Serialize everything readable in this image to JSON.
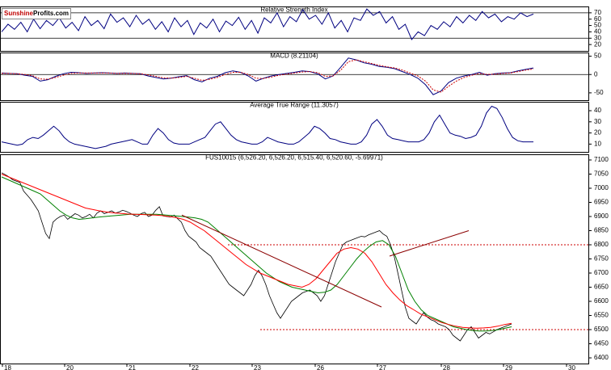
{
  "logo": {
    "part1": "Sunshine",
    "part2": "Profits.com"
  },
  "chart_data": [
    {
      "type": "line",
      "title": "Relative Strength Index",
      "ylim": [
        10,
        80
      ],
      "y_ticks": [
        70,
        60,
        50,
        40,
        30,
        20
      ],
      "reference_lines": [
        70,
        30
      ],
      "series": [
        {
          "color": "#000080",
          "values": [
            40,
            52,
            44,
            55,
            40,
            60,
            45,
            58,
            50,
            62,
            46,
            55,
            42,
            64,
            50,
            58,
            45,
            68,
            55,
            62,
            48,
            66,
            52,
            60,
            44,
            56,
            40,
            62,
            48,
            58,
            36,
            54,
            46,
            60,
            40,
            57,
            50,
            63,
            44,
            58,
            38,
            62,
            54,
            70,
            48,
            64,
            56,
            75,
            60,
            66,
            52,
            70,
            46,
            58,
            40,
            62,
            58,
            76,
            66,
            72,
            54,
            64,
            44,
            52,
            28,
            40,
            34,
            50,
            44,
            56,
            48,
            64,
            54,
            66,
            58,
            72,
            62,
            68,
            56,
            64,
            60,
            70,
            64,
            68
          ]
        }
      ]
    },
    {
      "type": "line",
      "title": "MACD (8.21104)",
      "ylim": [
        -70,
        60
      ],
      "y_ticks": [
        50,
        0,
        -50
      ],
      "series": [
        {
          "color": "#000080",
          "values": [
            4,
            3,
            2,
            -2,
            -5,
            -18,
            -14,
            -5,
            2,
            6,
            5,
            3,
            4,
            5,
            4,
            3,
            4,
            3,
            2,
            -4,
            -8,
            -12,
            -10,
            -6,
            -3,
            -14,
            -20,
            -10,
            -5,
            5,
            10,
            6,
            -4,
            -18,
            -10,
            -4,
            0,
            3,
            6,
            10,
            8,
            2,
            -12,
            -4,
            20,
            45,
            40,
            32,
            28,
            22,
            20,
            16,
            8,
            0,
            -10,
            -28,
            -55,
            -45,
            -22,
            -10,
            -4,
            0,
            6,
            -2,
            2,
            4,
            5,
            10,
            14,
            18
          ]
        },
        {
          "color": "#cc0000",
          "values": [
            3,
            3,
            2,
            0,
            -3,
            -12,
            -13,
            -8,
            -2,
            3,
            4,
            4,
            4,
            4,
            4,
            3,
            3,
            3,
            2,
            -1,
            -5,
            -9,
            -10,
            -8,
            -5,
            -10,
            -16,
            -13,
            -8,
            0,
            6,
            6,
            0,
            -10,
            -11,
            -7,
            -2,
            1,
            4,
            7,
            8,
            5,
            -5,
            -4,
            12,
            35,
            40,
            35,
            30,
            25,
            21,
            18,
            12,
            4,
            -4,
            -18,
            -42,
            -48,
            -32,
            -18,
            -8,
            -2,
            3,
            0,
            1,
            3,
            4,
            8,
            12,
            15
          ]
        }
      ]
    },
    {
      "type": "line",
      "title": "Average True Range (11.3057)",
      "ylim": [
        3,
        48
      ],
      "y_ticks": [
        40,
        30,
        20,
        10
      ],
      "series": [
        {
          "color": "#000080",
          "values": [
            12,
            11,
            10,
            9,
            10,
            14,
            16,
            15,
            18,
            22,
            26,
            22,
            16,
            12,
            10,
            9,
            8,
            7,
            6,
            7,
            8,
            10,
            11,
            12,
            13,
            14,
            12,
            10,
            10,
            18,
            24,
            20,
            14,
            11,
            10,
            10,
            10,
            12,
            14,
            16,
            22,
            28,
            30,
            24,
            18,
            14,
            12,
            11,
            10,
            10,
            12,
            16,
            14,
            12,
            11,
            10,
            10,
            12,
            16,
            20,
            26,
            24,
            20,
            15,
            14,
            12,
            11,
            10,
            10,
            12,
            18,
            28,
            32,
            26,
            18,
            15,
            14,
            13,
            12,
            12,
            12,
            14,
            20,
            30,
            36,
            28,
            20,
            18,
            17,
            15,
            16,
            18,
            26,
            38,
            44,
            42,
            34,
            24,
            16,
            13,
            12,
            12,
            12
          ]
        }
      ]
    },
    {
      "type": "line",
      "title": "FUS10015 (6,526.20, 6,526.20, 6,515.40, 6,520.60, -5.69971)",
      "ylim": [
        6380,
        7120
      ],
      "y_ticks": [
        7100,
        7050,
        7000,
        6950,
        6900,
        6850,
        6800,
        6750,
        6700,
        6650,
        6600,
        6550,
        6500,
        6450,
        6400
      ],
      "x_ticks": [
        "18",
        "20",
        "21",
        "22",
        "23",
        "26",
        "27",
        "28",
        "29",
        "30"
      ],
      "horizontal_levels": [
        6800,
        6500
      ],
      "series": [
        {
          "color": "#000000",
          "values": [
            7055,
            7048,
            7040,
            7030,
            7025,
            7020,
            6990,
            6975,
            6960,
            6940,
            6920,
            6880,
            6840,
            6822,
            6880,
            6892,
            6900,
            6905,
            6890,
            6900,
            6910,
            6905,
            6895,
            6900,
            6908,
            6895,
            6912,
            6920,
            6910,
            6915,
            6920,
            6912,
            6916,
            6922,
            6918,
            6912,
            6905,
            6900,
            6910,
            6915,
            6900,
            6905,
            6922,
            6935,
            6902,
            6900,
            6898,
            6905,
            6892,
            6880,
            6850,
            6830,
            6820,
            6810,
            6790,
            6780,
            6770,
            6760,
            6740,
            6720,
            6700,
            6680,
            6660,
            6650,
            6640,
            6630,
            6620,
            6640,
            6660,
            6690,
            6710,
            6690,
            6660,
            6620,
            6590,
            6560,
            6540,
            6560,
            6580,
            6600,
            6610,
            6620,
            6630,
            6635,
            6640,
            6630,
            6620,
            6600,
            6620,
            6660,
            6700,
            6740,
            6770,
            6800,
            6810,
            6815,
            6820,
            6825,
            6830,
            6828,
            6835,
            6840,
            6845,
            6850,
            6838,
            6830,
            6800,
            6760,
            6700,
            6640,
            6580,
            6540,
            6530,
            6520,
            6540,
            6560,
            6545,
            6535,
            6530,
            6520,
            6515,
            6510,
            6500,
            6480,
            6470,
            6460,
            6480,
            6500,
            6510,
            6490,
            6470,
            6480,
            6490,
            6485,
            6492,
            6500,
            6505,
            6510,
            6515,
            6520
          ]
        },
        {
          "color": "#008000",
          "values": [
            7040,
            7030,
            7020,
            7010,
            7000,
            6990,
            6980,
            6960,
            6940,
            6920,
            6905,
            6895,
            6890,
            6892,
            6895,
            6898,
            6900,
            6902,
            6904,
            6906,
            6908,
            6908,
            6908,
            6908,
            6908,
            6906,
            6904,
            6902,
            6900,
            6898,
            6895,
            6890,
            6880,
            6860,
            6840,
            6820,
            6800,
            6780,
            6760,
            6740,
            6720,
            6700,
            6685,
            6670,
            6660,
            6650,
            6645,
            6640,
            6635,
            6630,
            6632,
            6640,
            6660,
            6690,
            6720,
            6750,
            6775,
            6795,
            6810,
            6815,
            6800,
            6760,
            6700,
            6640,
            6600,
            6570,
            6550,
            6540,
            6530,
            6520,
            6510,
            6505,
            6500,
            6497,
            6495,
            6495,
            6497,
            6500,
            6505,
            6510
          ]
        },
        {
          "color": "#ff0000",
          "values": [
            7050,
            7040,
            7030,
            7020,
            7010,
            7000,
            6990,
            6980,
            6970,
            6960,
            6950,
            6940,
            6930,
            6925,
            6920,
            6916,
            6913,
            6911,
            6909,
            6908,
            6907,
            6906,
            6905,
            6903,
            6900,
            6896,
            6890,
            6880,
            6865,
            6850,
            6830,
            6810,
            6790,
            6770,
            6750,
            6730,
            6715,
            6700,
            6690,
            6680,
            6670,
            6660,
            6655,
            6650,
            6660,
            6680,
            6710,
            6740,
            6770,
            6785,
            6790,
            6785,
            6770,
            6740,
            6700,
            6660,
            6630,
            6605,
            6585,
            6570,
            6555,
            6545,
            6535,
            6525,
            6518,
            6512,
            6508,
            6506,
            6505,
            6506,
            6508,
            6512,
            6518,
            6522
          ]
        }
      ]
    }
  ]
}
